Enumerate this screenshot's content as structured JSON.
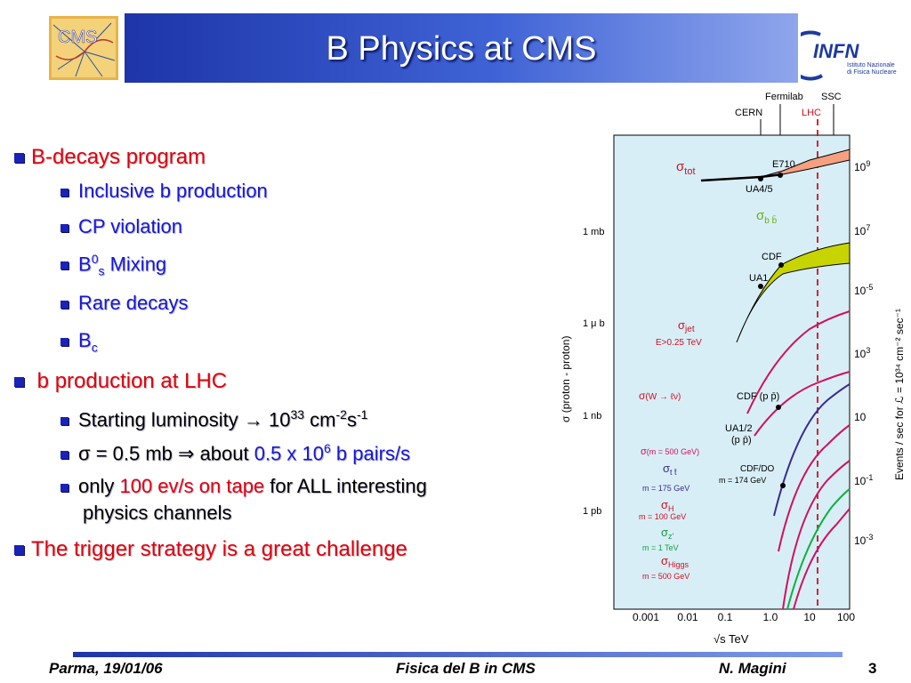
{
  "title": "B Physics at CMS",
  "logos": {
    "cms": "CMS",
    "infn": "INFN",
    "infn_sub1": "Istituto Nazionale",
    "infn_sub2": "di Fisica Nucleare"
  },
  "bullets": {
    "b1": "B-decays program",
    "b1_items": [
      "Inclusive b production",
      "CP violation",
      "Rare decays"
    ],
    "b1_mix_pre": "B",
    "b1_mix_sup": "0",
    "b1_mix_sub": "s",
    "b1_mix_post": " Mixing",
    "b1_bc_pre": "B",
    "b1_bc_sub": "c",
    "b2": "b production at LHC",
    "lum_pre": "Starting luminosity ",
    "lum_arrow": "→",
    "lum_num": " 10",
    "lum_exp": "33",
    "lum_unit": " cm",
    "lum_e1": "-2",
    "lum_s": "s",
    "lum_e2": "-1",
    "sig_pre": "σ = 0.5 mb ⇒ about ",
    "sig_val": "0.5 x 10",
    "sig_exp": "6",
    "sig_post": " b pairs/s",
    "only_pre": "only ",
    "only_red": "100 ev/s on tape",
    "only_post": " for ALL interesting",
    "only_line2": "physics channels",
    "b3": "The trigger strategy is a great challenge"
  },
  "footer": {
    "left": "Parma, 19/01/06",
    "center": "Fisica del B in CMS",
    "right": "N. Magini",
    "page": "3"
  },
  "plot": {
    "top_labels": {
      "fermilab": "Fermilab",
      "ssc": "SSC",
      "cern": "CERN",
      "lhc": "LHC"
    },
    "left_ticks": [
      "1 mb",
      "1 μ b",
      "1 nb",
      "1 pb"
    ],
    "right_ticks": [
      {
        "m": "10",
        "e": "9"
      },
      {
        "m": "10",
        "e": "7"
      },
      {
        "m": "10",
        "e": "-5"
      },
      {
        "m": "10",
        "e": "3"
      },
      {
        "m": "10",
        "e": ""
      },
      {
        "m": "10",
        "e": "-1"
      },
      {
        "m": "10",
        "e": "-3"
      }
    ],
    "x_ticks": [
      "0.001",
      "0.01",
      "0.1",
      "1.0",
      "10",
      "100"
    ],
    "x_label": "√s   TeV",
    "y_label": "σ  (proton - proton)",
    "y_right_label": "Events / sec for  ℒ = 10³⁴ cm⁻² sec⁻¹",
    "labels": {
      "stot": "σ",
      "stot_sub": "tot",
      "e710": "E710",
      "ua45": "UA4/5",
      "sbb": "σ",
      "sbb_sub": "b b̄",
      "cdf": "CDF",
      "ua1": "UA1",
      "sjet": "σ",
      "sjet_sub": "jet",
      "ejet": "E",
      "ejet_rest": ">0.25 TeV",
      "sw": "σ",
      "sw_rest": "(W → ℓν)",
      "cdfpp": "CDF (p p̄)",
      "ua12": "UA1/2",
      "ua12b": "(p p̄)",
      "sgg": "σ",
      "sgg_rest": "(m  = 500 GeV)",
      "stt": "σ",
      "stt_sub": "t t̄",
      "mtop175": "m   = 175 GeV",
      "cdfdo": "CDF/DO",
      "mtop174": "m    = 174 GeV",
      "sh": "σ",
      "sh_sub": "H",
      "mh100": "m  = 100 GeV",
      "sz": "σ",
      "sz_sub": "z'",
      "mz": "m  = 1 TeV",
      "shiggs": "σ",
      "shiggs_sub": "Higgs",
      "mh500": "m  = 500 GeV"
    }
  }
}
